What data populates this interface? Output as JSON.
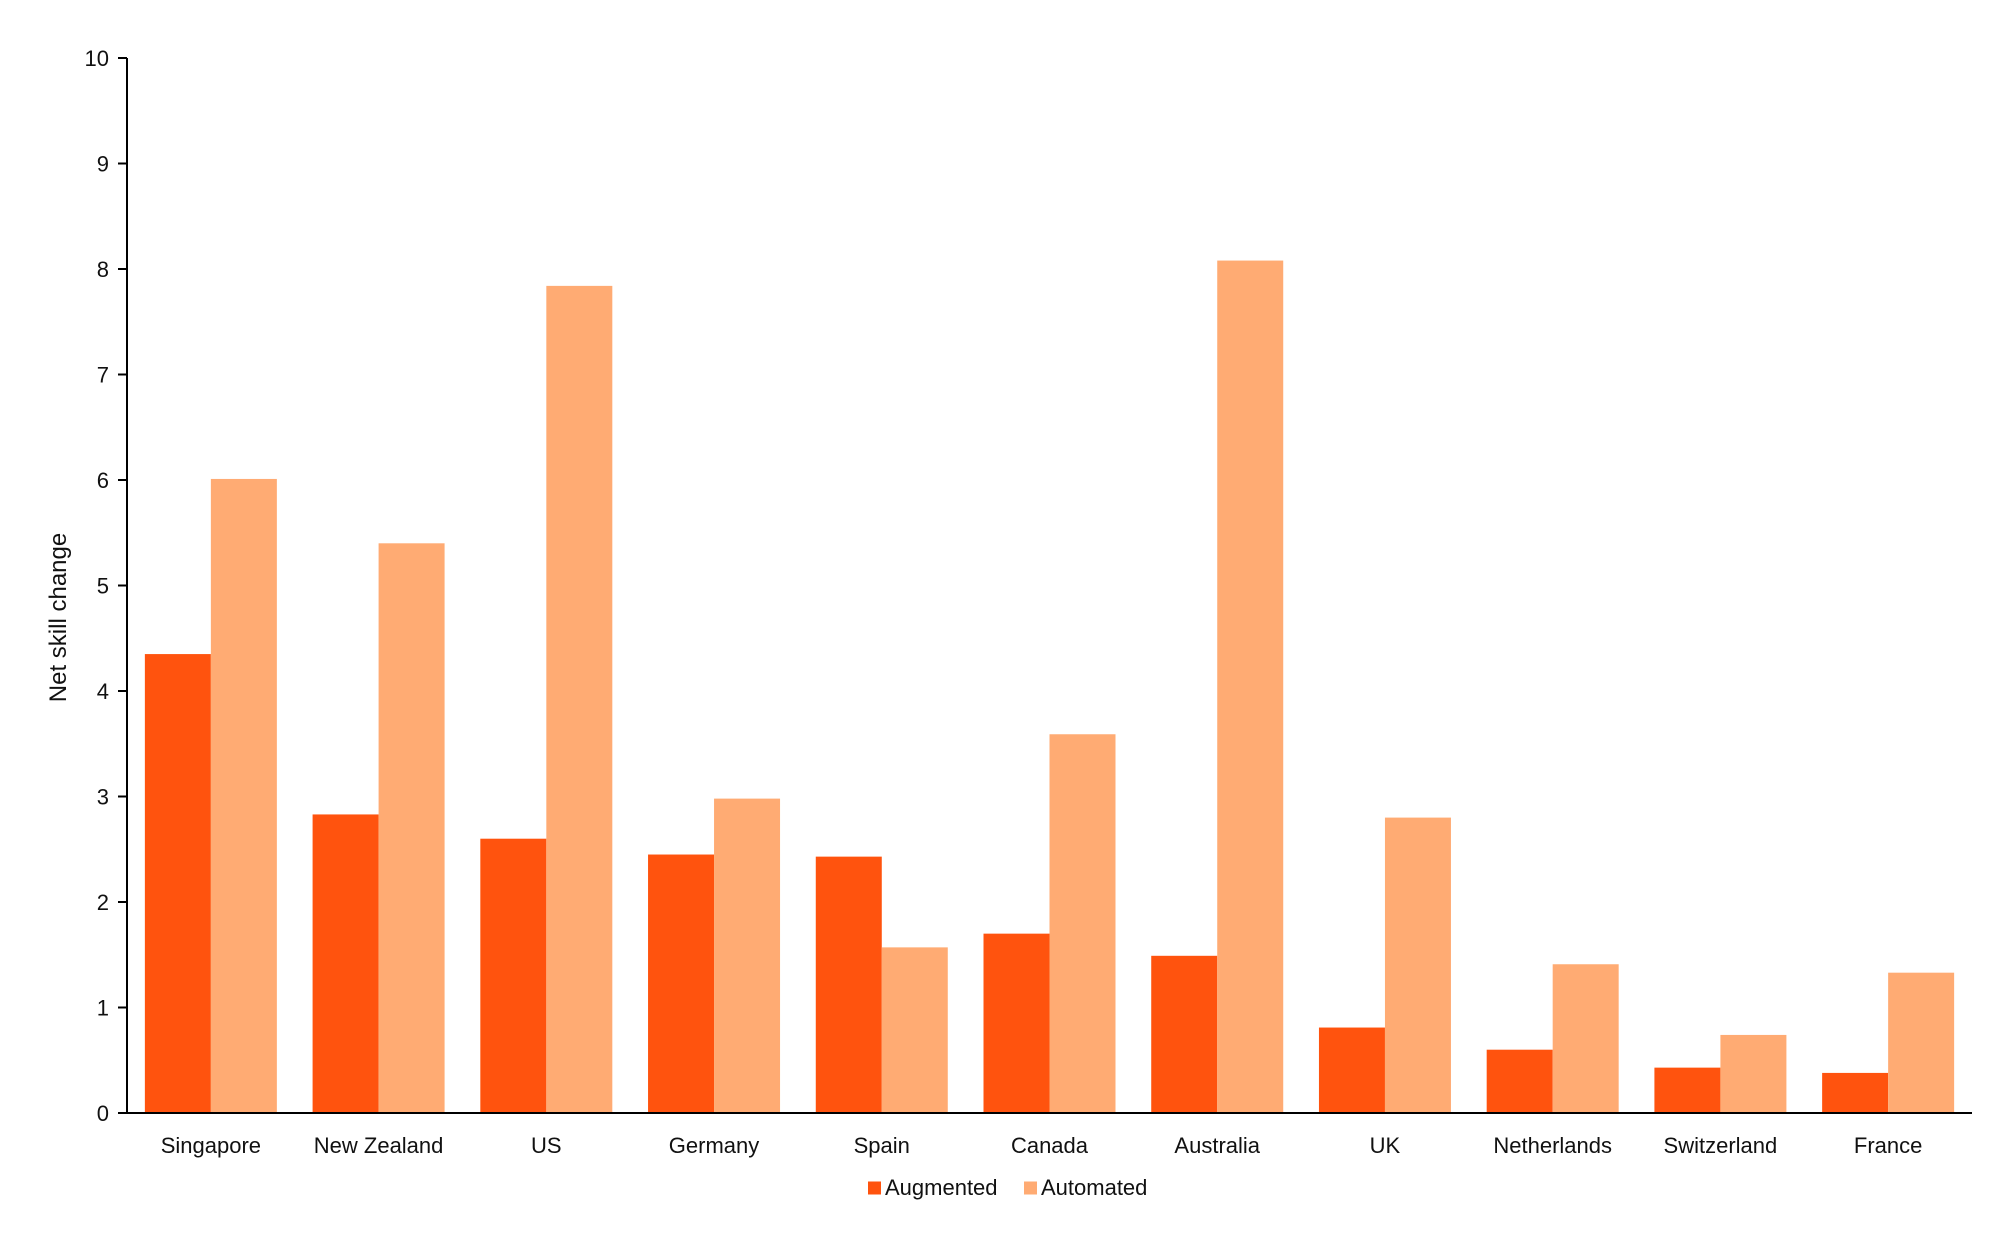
{
  "chart_data": {
    "type": "bar",
    "title": "",
    "xlabel": "",
    "ylabel": "Net skill change",
    "ylim": [
      0,
      10
    ],
    "yticks": [
      0,
      1,
      2,
      3,
      4,
      5,
      6,
      7,
      8,
      9,
      10
    ],
    "grid": false,
    "legend_position": "bottom-center",
    "categories": [
      "Singapore",
      "New Zealand",
      "US",
      "Germany",
      "Spain",
      "Canada",
      "Australia",
      "UK",
      "Netherlands",
      "Switzerland",
      "France"
    ],
    "series": [
      {
        "name": "Augmented",
        "color": "#ff530e",
        "values": [
          4.35,
          2.83,
          2.6,
          2.45,
          2.43,
          1.7,
          1.49,
          0.81,
          0.6,
          0.43,
          0.38
        ]
      },
      {
        "name": "Automated",
        "color": "#ffab73",
        "values": [
          6.01,
          5.4,
          7.84,
          2.98,
          1.57,
          3.59,
          8.08,
          2.8,
          1.41,
          0.74,
          1.33
        ]
      }
    ]
  }
}
